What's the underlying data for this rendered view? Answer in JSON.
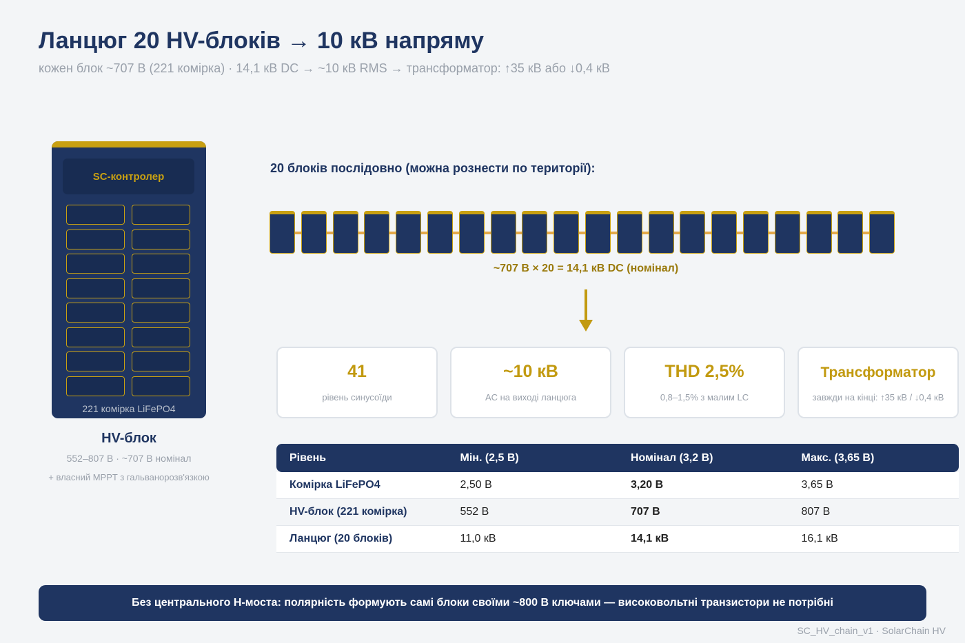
{
  "header": {
    "title": "Ланцюг 20 HV-блоків → 10 кВ напряму",
    "subtitle": "кожен блок ~707 В (221 комірка) · 14,1 кВ DC → ~10 кВ RMS → трансформатор: ↑35 кВ або ↓0,4 кВ"
  },
  "hv_block": {
    "controller": "SC-контролер",
    "caption": "221 комірка LiFePO4",
    "name": "HV-блок",
    "range": "552–807 В · ~707 В номінал",
    "extra": "+ власний MPPT з гальванорозв'язкою",
    "cells_rows": 8,
    "cells_cols": 2
  },
  "chain": {
    "label": "20 блоків послідовно (можна рознести по території):",
    "count": 20,
    "formula": "~707 В × 20 = 14,1 кВ DC (номінал)"
  },
  "cards": [
    {
      "value": "41",
      "label": "рівень синусоїди"
    },
    {
      "value": "~10 кВ",
      "label": "AC на виході ланцюга"
    },
    {
      "value": "THD 2,5%",
      "label": "0,8–1,5% з малим LC"
    },
    {
      "value": "Трансформатор",
      "label": "завжди на кінці: ↑35 кВ / ↓0,4 кВ"
    }
  ],
  "table": {
    "headers": [
      "Рівень",
      "Мін. (2,5 В)",
      "Номінал (3,2 В)",
      "Макс. (3,65 В)"
    ],
    "rows": [
      [
        "Комірка LiFePO4",
        "2,50 В",
        "3,20 В",
        "3,65 В"
      ],
      [
        "HV-блок (221 комірка)",
        "552 В",
        "707 В",
        "807 В"
      ],
      [
        "Ланцюг (20 блоків)",
        "11,0 кВ",
        "14,1 кВ",
        "16,1 кВ"
      ]
    ]
  },
  "banner": "Без центрального H-моста: полярність формують самі блоки своїми ~800 В ключами — високовольтні транзистори не потрібні",
  "footer": "SC_HV_chain_v1 · SolarChain HV",
  "colors": {
    "navy": "#1f3561",
    "gold": "#c8a012",
    "chain_line": "#e3a94a"
  }
}
